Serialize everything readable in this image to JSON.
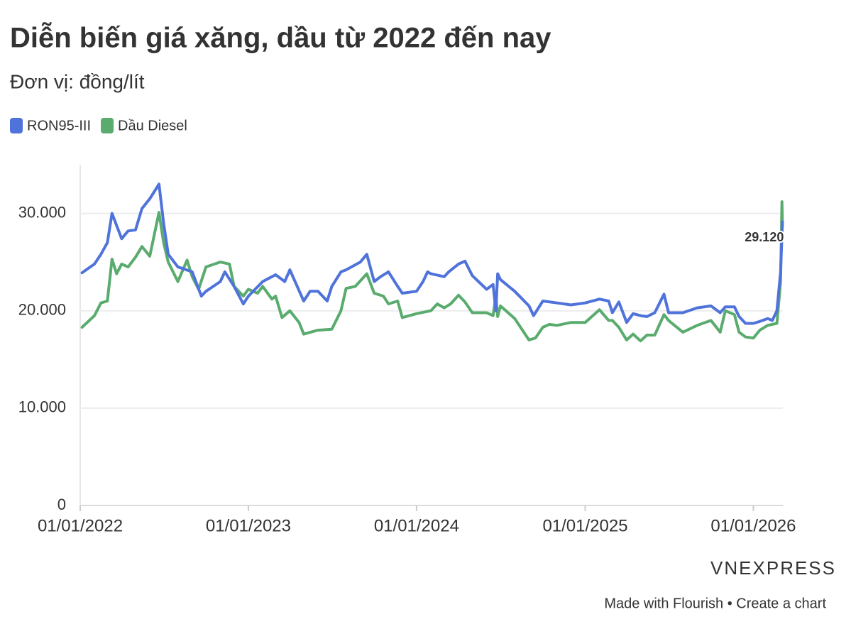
{
  "chart_data": {
    "type": "line",
    "title": "Diễn biến giá xăng, dầu từ 2022 đến nay",
    "subtitle": "Đơn vị: đồng/lít",
    "legend": "top-left",
    "grid": true,
    "xlim": [
      "01/01/2022",
      "06/03/2026"
    ],
    "xticks": [
      "01/01/2022",
      "01/01/2023",
      "01/01/2024",
      "01/01/2025",
      "01/01/2026"
    ],
    "ylim": [
      0,
      35000
    ],
    "yticks": [
      0,
      {
        "value": 10000,
        "label": "10.000"
      },
      {
        "value": 20000,
        "label": "20.000"
      },
      {
        "value": 30000,
        "label": "30.000"
      }
    ],
    "series": [
      {
        "name": "RON95-III",
        "color": "#4f73da",
        "x": [
          "05/01/2022",
          "01/02/2022",
          "15/02/2022",
          "01/03/2022",
          "11/03/2022",
          "01/04/2022",
          "15/04/2022",
          "01/05/2022",
          "15/05/2022",
          "01/06/2022",
          "21/06/2022",
          "01/07/2022",
          "11/07/2022",
          "01/08/2022",
          "01/09/2022",
          "21/09/2022",
          "01/10/2022",
          "01/11/2022",
          "11/11/2022",
          "01/12/2022",
          "21/12/2022",
          "01/01/2023",
          "01/02/2023",
          "01/03/2023",
          "21/03/2023",
          "01/04/2023",
          "01/05/2023",
          "15/05/2023",
          "01/06/2023",
          "21/06/2023",
          "01/07/2023",
          "21/07/2023",
          "01/08/2023",
          "01/09/2023",
          "15/09/2023",
          "01/10/2023",
          "15/10/2023",
          "01/11/2023",
          "21/11/2023",
          "01/12/2023",
          "01/01/2024",
          "15/01/2024",
          "25/01/2024",
          "01/02/2024",
          "01/03/2024",
          "11/03/2024",
          "01/04/2024",
          "15/04/2024",
          "01/05/2024",
          "01/06/2024",
          "15/06/2024",
          "21/06/2024",
          "25/06/2024",
          "01/07/2024",
          "01/08/2024",
          "01/09/2024",
          "11/09/2024",
          "01/10/2024",
          "01/11/2024",
          "01/12/2024",
          "01/01/2025",
          "01/02/2025",
          "21/02/2025",
          "01/03/2025",
          "15/03/2025",
          "01/04/2025",
          "15/04/2025",
          "01/05/2025",
          "15/05/2025",
          "01/06/2025",
          "21/06/2025",
          "01/07/2025",
          "01/08/2025",
          "01/09/2025",
          "01/10/2025",
          "21/10/2025",
          "01/11/2025",
          "21/11/2025",
          "01/12/2025",
          "15/12/2025",
          "01/01/2026",
          "15/01/2026",
          "01/02/2026",
          "11/02/2026",
          "21/02/2026",
          "01/03/2026",
          "05/03/2026"
        ],
        "values": [
          23900,
          24800,
          25800,
          27000,
          30000,
          27400,
          28200,
          28300,
          30500,
          31500,
          33000,
          29000,
          25800,
          24500,
          24000,
          21500,
          22000,
          23000,
          24000,
          22500,
          20700,
          21500,
          23000,
          23700,
          23000,
          24200,
          21000,
          22000,
          22000,
          21000,
          22500,
          24000,
          24200,
          25000,
          25800,
          23000,
          23500,
          24000,
          22500,
          21800,
          22000,
          23000,
          24000,
          23800,
          23500,
          24000,
          24800,
          25100,
          23600,
          22200,
          22700,
          20000,
          23800,
          23200,
          22000,
          20500,
          19500,
          21000,
          20800,
          20600,
          20800,
          21200,
          21000,
          19800,
          20900,
          18800,
          19700,
          19500,
          19400,
          19800,
          21700,
          19800,
          19800,
          20300,
          20500,
          19800,
          20400,
          20400,
          19400,
          18700,
          18700,
          18900,
          19200,
          19000,
          20000,
          24000,
          29120
        ],
        "value_labels": [
          null,
          null,
          null,
          null,
          null,
          null,
          null,
          null,
          null,
          null,
          null,
          null,
          null,
          null,
          null,
          null,
          null,
          null,
          null,
          null,
          null,
          null,
          null,
          null,
          null,
          null,
          null,
          null,
          null,
          null,
          null,
          null,
          null,
          null,
          null,
          null,
          null,
          null,
          null,
          null,
          null,
          null,
          null,
          null,
          null,
          null,
          null,
          null,
          null,
          null,
          null,
          null,
          null,
          null,
          null,
          null,
          null,
          null,
          null,
          null,
          null,
          null,
          null,
          null,
          null,
          null,
          null,
          null,
          null,
          null,
          null,
          null,
          null,
          null,
          null,
          null,
          null,
          null,
          null,
          null,
          null,
          null,
          null,
          null,
          null,
          null,
          "29.120"
        ]
      },
      {
        "name": "Dầu Diesel",
        "color": "#5aab6e",
        "x": [
          "05/01/2022",
          "01/02/2022",
          "15/02/2022",
          "01/03/2022",
          "11/03/2022",
          "21/03/2022",
          "01/04/2022",
          "15/04/2022",
          "01/05/2022",
          "15/05/2022",
          "01/06/2022",
          "21/06/2022",
          "01/07/2022",
          "11/07/2022",
          "01/08/2022",
          "21/08/2022",
          "01/09/2022",
          "15/09/2022",
          "01/10/2022",
          "01/11/2022",
          "21/11/2022",
          "01/12/2022",
          "21/12/2022",
          "01/01/2023",
          "21/01/2023",
          "01/02/2023",
          "21/02/2023",
          "01/03/2023",
          "15/03/2023",
          "01/04/2023",
          "21/04/2023",
          "01/05/2023",
          "01/06/2023",
          "01/07/2023",
          "21/07/2023",
          "01/08/2023",
          "21/08/2023",
          "15/09/2023",
          "01/10/2023",
          "21/10/2023",
          "01/11/2023",
          "21/11/2023",
          "01/12/2023",
          "01/01/2024",
          "01/02/2024",
          "15/02/2024",
          "01/03/2024",
          "15/03/2024",
          "01/04/2024",
          "15/04/2024",
          "01/05/2024",
          "01/06/2024",
          "15/06/2024",
          "21/06/2024",
          "25/06/2024",
          "01/07/2024",
          "01/08/2024",
          "01/09/2024",
          "15/09/2024",
          "01/10/2024",
          "15/10/2024",
          "01/11/2024",
          "01/12/2024",
          "01/01/2025",
          "01/02/2025",
          "21/02/2025",
          "01/03/2025",
          "15/03/2025",
          "01/04/2025",
          "15/04/2025",
          "01/05/2025",
          "15/05/2025",
          "01/06/2025",
          "21/06/2025",
          "01/07/2025",
          "01/08/2025",
          "01/09/2025",
          "01/10/2025",
          "21/10/2025",
          "01/11/2025",
          "21/11/2025",
          "01/12/2025",
          "15/12/2025",
          "01/01/2026",
          "15/01/2026",
          "01/02/2026",
          "21/02/2026",
          "01/03/2026",
          "04/03/2026",
          "05/03/2026"
        ],
        "values": [
          18300,
          19500,
          20800,
          21000,
          25300,
          23800,
          24800,
          24500,
          25500,
          26600,
          25600,
          30100,
          27000,
          25000,
          23000,
          25200,
          23500,
          22200,
          24500,
          25000,
          24800,
          22500,
          21500,
          22200,
          21800,
          22500,
          21200,
          21500,
          19300,
          20000,
          18800,
          17600,
          18000,
          18100,
          20000,
          22300,
          22500,
          23800,
          21800,
          21500,
          20700,
          21000,
          19300,
          19700,
          20000,
          20700,
          20300,
          20700,
          21600,
          20900,
          19800,
          19800,
          19500,
          21500,
          19400,
          20500,
          19200,
          17000,
          17200,
          18300,
          18600,
          18500,
          18800,
          18800,
          20100,
          19000,
          19000,
          18300,
          17000,
          17600,
          16900,
          17500,
          17500,
          19600,
          19000,
          17800,
          18500,
          19000,
          17800,
          20000,
          19600,
          17800,
          17300,
          17200,
          18000,
          18500,
          18700,
          23000,
          31200,
          28700
        ]
      }
    ],
    "logo": "VNEXPRESS",
    "footer": "Made with Flourish • Create a chart"
  }
}
